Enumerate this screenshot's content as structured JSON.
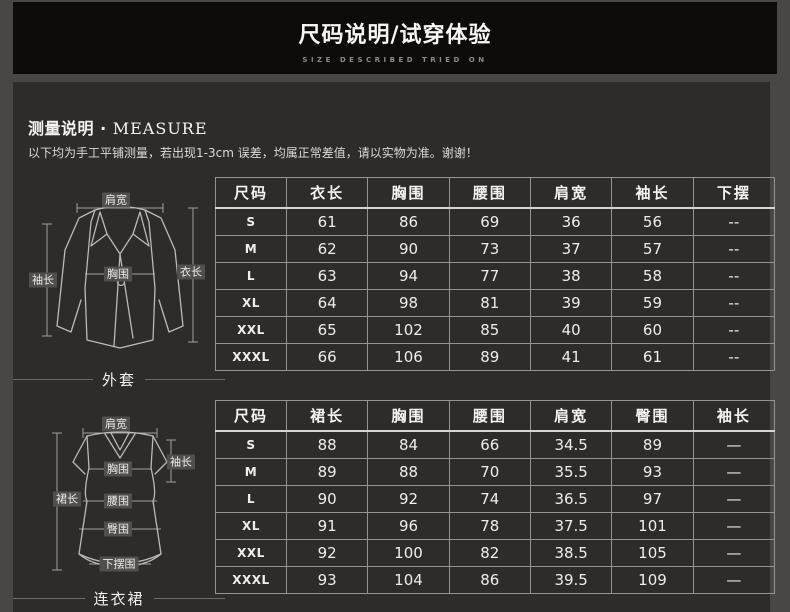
{
  "header": {
    "title": "尺码说明/试穿体验",
    "subtitle": "SIZE DESCRIBED TRIED ON"
  },
  "measure": {
    "heading_zh": "测量说明",
    "heading_sep": " · ",
    "heading_en": "MEASURE",
    "note": "以下均为手工平铺测量，若出现1-3cm 误差，均属正常差值，请以实物为准。谢谢！"
  },
  "jacket": {
    "caption": "外套",
    "diagram_labels": {
      "shoulder": "肩宽",
      "sleeve": "袖长",
      "bust": "胸围",
      "length": "衣长"
    },
    "table": {
      "headers": [
        "尺码",
        "衣长",
        "胸围",
        "腰围",
        "肩宽",
        "袖长",
        "下摆"
      ],
      "rows": [
        [
          "S",
          "61",
          "86",
          "69",
          "36",
          "56",
          "--"
        ],
        [
          "M",
          "62",
          "90",
          "73",
          "37",
          "57",
          "--"
        ],
        [
          "L",
          "63",
          "94",
          "77",
          "38",
          "58",
          "--"
        ],
        [
          "XL",
          "64",
          "98",
          "81",
          "39",
          "59",
          "--"
        ],
        [
          "XXL",
          "65",
          "102",
          "85",
          "40",
          "60",
          "--"
        ],
        [
          "XXXL",
          "66",
          "106",
          "89",
          "41",
          "61",
          "--"
        ]
      ]
    }
  },
  "dress": {
    "caption": "连衣裙",
    "diagram_labels": {
      "shoulder": "肩宽",
      "sleeve": "袖长",
      "bust": "胸围",
      "skirt_length": "裙长",
      "waist": "腰围",
      "hip": "臀围",
      "hem": "下摆围"
    },
    "table": {
      "headers": [
        "尺码",
        "裙长",
        "胸围",
        "腰围",
        "肩宽",
        "臀围",
        "袖长"
      ],
      "rows": [
        [
          "S",
          "88",
          "84",
          "66",
          "34.5",
          "89",
          "—"
        ],
        [
          "M",
          "89",
          "88",
          "70",
          "35.5",
          "93",
          "—"
        ],
        [
          "L",
          "90",
          "92",
          "74",
          "36.5",
          "97",
          "—"
        ],
        [
          "XL",
          "91",
          "96",
          "78",
          "37.5",
          "101",
          "—"
        ],
        [
          "XXL",
          "92",
          "100",
          "82",
          "38.5",
          "105",
          "—"
        ],
        [
          "XXXL",
          "93",
          "104",
          "86",
          "39.5",
          "109",
          "—"
        ]
      ]
    }
  },
  "colors": {
    "page_bg": "#4a4643",
    "banner_bg": "#0e0c0a",
    "panel_bg": "#2e2b28",
    "text": "#f0eeeb",
    "grid_line": "#97938d"
  }
}
